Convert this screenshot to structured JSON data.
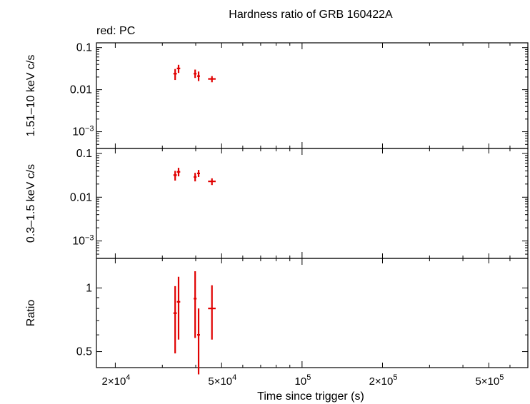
{
  "chart_data": {
    "type": "scatter",
    "title": "Hardness ratio of GRB 160422A",
    "legend_text": "red: PC",
    "xlabel": "Time since trigger (s)",
    "xscale": "log",
    "xlim": [
      17000,
      700000
    ],
    "x_ticks": [
      {
        "value": 20000,
        "mant": "2",
        "exp": "4"
      },
      {
        "value": 50000,
        "mant": "5",
        "exp": "4"
      },
      {
        "value": 100000,
        "mant": "",
        "exp": "5"
      },
      {
        "value": 200000,
        "mant": "2",
        "exp": "5"
      },
      {
        "value": 500000,
        "mant": "5",
        "exp": "5"
      }
    ],
    "panels": [
      {
        "name": "hard",
        "ylabel": "1.51–10 keV c/s",
        "yscale": "log",
        "ylim": [
          0.0004,
          0.13
        ],
        "y_ticks": [
          {
            "value": 0.1,
            "label": "0.1"
          },
          {
            "value": 0.01,
            "label": "0.01"
          },
          {
            "value": 0.001,
            "label": "10",
            "exp": "−3"
          }
        ],
        "series": [
          {
            "color": "#e00000",
            "points": [
              {
                "x": 33500,
                "xlo": 33000,
                "xhi": 34000,
                "y": 0.024,
                "ylo": 0.017,
                "yhi": 0.031
              },
              {
                "x": 34500,
                "xlo": 34000,
                "xhi": 35000,
                "y": 0.032,
                "ylo": 0.025,
                "yhi": 0.039
              },
              {
                "x": 39800,
                "xlo": 39300,
                "xhi": 40300,
                "y": 0.024,
                "ylo": 0.019,
                "yhi": 0.03
              },
              {
                "x": 41000,
                "xlo": 40500,
                "xhi": 41500,
                "y": 0.021,
                "ylo": 0.016,
                "yhi": 0.027
              },
              {
                "x": 46000,
                "xlo": 44500,
                "xhi": 47500,
                "y": 0.018,
                "ylo": 0.015,
                "yhi": 0.021
              }
            ]
          }
        ]
      },
      {
        "name": "soft",
        "ylabel": "0.3–1.5 keV c/s",
        "yscale": "log",
        "ylim": [
          0.0004,
          0.13
        ],
        "y_ticks": [
          {
            "value": 0.1,
            "label": "0.1"
          },
          {
            "value": 0.01,
            "label": "0.01"
          },
          {
            "value": 0.001,
            "label": "10",
            "exp": "−3"
          }
        ],
        "series": [
          {
            "color": "#e00000",
            "points": [
              {
                "x": 33500,
                "xlo": 33000,
                "xhi": 34000,
                "y": 0.032,
                "ylo": 0.024,
                "yhi": 0.04
              },
              {
                "x": 34500,
                "xlo": 34000,
                "xhi": 35000,
                "y": 0.038,
                "ylo": 0.03,
                "yhi": 0.047
              },
              {
                "x": 39800,
                "xlo": 39300,
                "xhi": 40300,
                "y": 0.029,
                "ylo": 0.023,
                "yhi": 0.036
              },
              {
                "x": 41000,
                "xlo": 40500,
                "xhi": 41500,
                "y": 0.035,
                "ylo": 0.029,
                "yhi": 0.042
              },
              {
                "x": 46000,
                "xlo": 44500,
                "xhi": 47500,
                "y": 0.023,
                "ylo": 0.019,
                "yhi": 0.027
              }
            ]
          }
        ]
      },
      {
        "name": "ratio",
        "ylabel": "Ratio",
        "yscale": "log",
        "ylim": [
          0.42,
          1.38
        ],
        "y_ticks": [
          {
            "value": 1,
            "label": "1"
          },
          {
            "value": 0.5,
            "label": "0.5"
          }
        ],
        "series": [
          {
            "color": "#e00000",
            "points": [
              {
                "x": 33500,
                "xlo": 33000,
                "xhi": 34000,
                "y": 0.76,
                "ylo": 0.49,
                "yhi": 1.02
              },
              {
                "x": 34500,
                "xlo": 34000,
                "xhi": 35000,
                "y": 0.86,
                "ylo": 0.57,
                "yhi": 1.13
              },
              {
                "x": 39800,
                "xlo": 39300,
                "xhi": 40300,
                "y": 0.89,
                "ylo": 0.58,
                "yhi": 1.2
              },
              {
                "x": 41000,
                "xlo": 40500,
                "xhi": 41500,
                "y": 0.6,
                "ylo": 0.39,
                "yhi": 0.8
              },
              {
                "x": 46000,
                "xlo": 44500,
                "xhi": 47500,
                "y": 0.8,
                "ylo": 0.57,
                "yhi": 1.03
              }
            ]
          }
        ]
      }
    ]
  }
}
